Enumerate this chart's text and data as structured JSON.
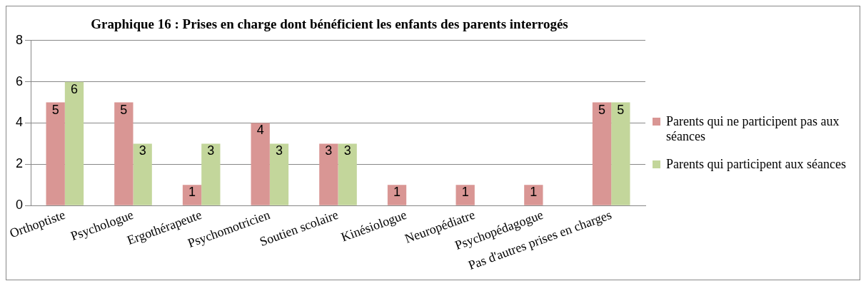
{
  "chart_data": {
    "type": "bar",
    "title": "Graphique 16 : Prises en charge dont bénéficient les enfants des parents interrogés",
    "categories": [
      "Orthoptiste",
      "Psychologue",
      "Ergothérapeute",
      "Psychomotricien",
      "Soutien scolaire",
      "Kinésiologue",
      "Neuropédiatre",
      "Psychopédagogue",
      "Pas d'autres prises en charges"
    ],
    "series": [
      {
        "name": "Parents qui ne participent pas aux séances",
        "color": "#d99694",
        "values": [
          5,
          5,
          1,
          4,
          3,
          1,
          1,
          1,
          5
        ]
      },
      {
        "name": "Parents qui participent aux séances",
        "color": "#c3d69b",
        "values": [
          6,
          3,
          3,
          3,
          3,
          null,
          null,
          null,
          5
        ]
      }
    ],
    "ylim": [
      0,
      8
    ],
    "yticks": [
      0,
      2,
      4,
      6,
      8
    ],
    "grid": "y",
    "legend": "right",
    "data_labels": true
  }
}
